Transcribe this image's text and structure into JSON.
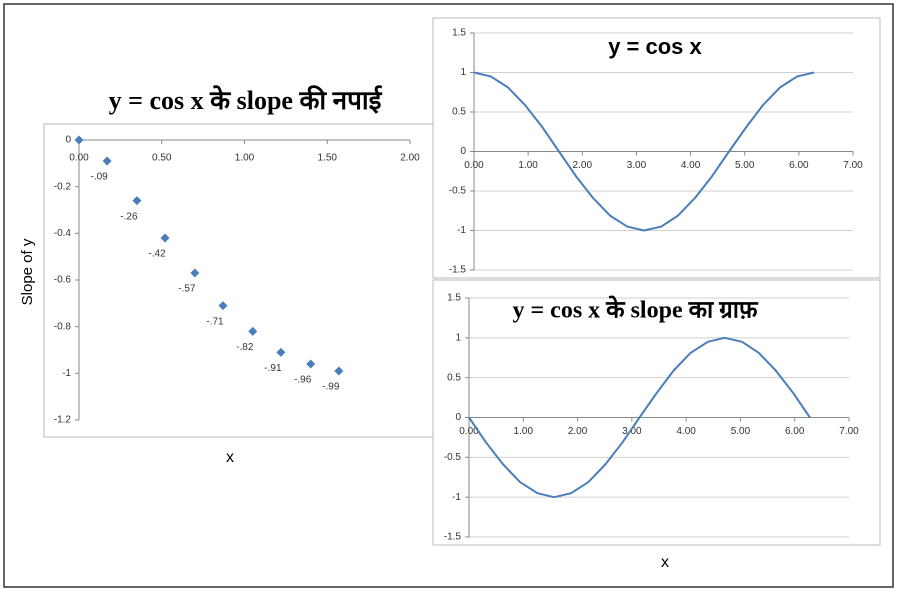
{
  "chart_data": [
    {
      "type": "scatter",
      "title": "y = cos x के slope की नपाई",
      "xlabel": "x",
      "ylabel": "Slope of y",
      "x": [
        0,
        0.17,
        0.35,
        0.52,
        0.7,
        0.87,
        1.05,
        1.22,
        1.4,
        1.57
      ],
      "values": [
        0,
        -0.09,
        -0.26,
        -0.42,
        -0.57,
        -0.71,
        -0.82,
        -0.91,
        -0.96,
        -0.99
      ],
      "value_labels": [
        null,
        "-.09",
        "-.26",
        "-.42",
        "-.57",
        "-.71",
        "-.82",
        "-.91",
        "-.96",
        "-.99"
      ],
      "color": "#4a7ebb",
      "xlim": [
        0,
        2
      ],
      "ylim": [
        -1.2,
        0
      ],
      "xticks": [
        {
          "value": 0,
          "label": "0.00"
        },
        {
          "value": 0.5,
          "label": "0.50"
        },
        {
          "value": 1,
          "label": "1.00"
        },
        {
          "value": 1.5,
          "label": "1.50"
        },
        {
          "value": 2,
          "label": "2.00"
        }
      ],
      "yticks": [
        0,
        -0.2,
        -0.4,
        -0.6,
        -0.8,
        -1,
        -1.2
      ],
      "grid": false
    },
    {
      "type": "line",
      "title": "y = cos x",
      "x": [
        0,
        0.31,
        0.63,
        0.94,
        1.26,
        1.57,
        1.88,
        2.2,
        2.51,
        2.83,
        3.14,
        3.46,
        3.77,
        4.08,
        4.4,
        4.71,
        5.03,
        5.34,
        5.65,
        5.97,
        6.28
      ],
      "values": [
        1,
        0.95,
        0.81,
        0.59,
        0.31,
        0,
        -0.31,
        -0.59,
        -0.81,
        -0.95,
        -1,
        -0.95,
        -0.81,
        -0.59,
        -0.31,
        0,
        0.31,
        0.59,
        0.81,
        0.95,
        1
      ],
      "color": "#4a7ebb",
      "xlim": [
        0,
        7
      ],
      "ylim": [
        -1.5,
        1.5
      ],
      "xticks": [
        {
          "value": 0,
          "label": "0.00"
        },
        {
          "value": 1,
          "label": "1.00"
        },
        {
          "value": 2,
          "label": "2.00"
        },
        {
          "value": 3,
          "label": "3.00"
        },
        {
          "value": 4,
          "label": "4.00"
        },
        {
          "value": 5,
          "label": "5.00"
        },
        {
          "value": 6,
          "label": "6.00"
        },
        {
          "value": 7,
          "label": "7.00"
        }
      ],
      "yticks": [
        1.5,
        1,
        0.5,
        0,
        -0.5,
        -1,
        -1.5
      ],
      "grid": true
    },
    {
      "type": "line",
      "title": "y = cos x के slope का ग्राफ़",
      "xlabel": "x",
      "x": [
        0,
        0.31,
        0.63,
        0.94,
        1.26,
        1.57,
        1.88,
        2.2,
        2.51,
        2.83,
        3.14,
        3.46,
        3.77,
        4.08,
        4.4,
        4.71,
        5.03,
        5.34,
        5.65,
        5.97,
        6.28
      ],
      "values": [
        0,
        -0.31,
        -0.59,
        -0.81,
        -0.95,
        -1,
        -0.95,
        -0.81,
        -0.59,
        -0.31,
        0,
        0.31,
        0.59,
        0.81,
        0.95,
        1,
        0.95,
        0.81,
        0.59,
        0.31,
        0
      ],
      "color": "#4a7ebb",
      "xlim": [
        0,
        7
      ],
      "ylim": [
        -1.5,
        1.5
      ],
      "xticks": [
        {
          "value": 0,
          "label": "0.00"
        },
        {
          "value": 1,
          "label": "1.00"
        },
        {
          "value": 2,
          "label": "2.00"
        },
        {
          "value": 3,
          "label": "3.00"
        },
        {
          "value": 4,
          "label": "4.00"
        },
        {
          "value": 5,
          "label": "5.00"
        },
        {
          "value": 6,
          "label": "6.00"
        },
        {
          "value": 7,
          "label": "7.00"
        }
      ],
      "yticks": [
        1.5,
        1,
        0.5,
        0,
        -0.5,
        -1,
        -1.5
      ],
      "grid": true
    }
  ]
}
